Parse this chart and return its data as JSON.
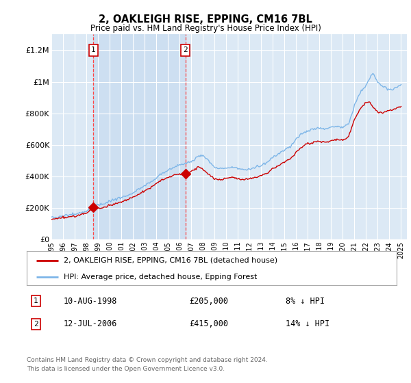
{
  "title": "2, OAKLEIGH RISE, EPPING, CM16 7BL",
  "subtitle": "Price paid vs. HM Land Registry's House Price Index (HPI)",
  "hpi_label": "HPI: Average price, detached house, Epping Forest",
  "price_label": "2, OAKLEIGH RISE, EPPING, CM16 7BL (detached house)",
  "sale1_date_x": 1998.6,
  "sale1_label": "1",
  "sale1_price": 205000,
  "sale1_date_str": "10-AUG-1998",
  "sale1_pct": "8% ↓ HPI",
  "sale2_date_x": 2006.5,
  "sale2_label": "2",
  "sale2_price": 415000,
  "sale2_date_str": "12-JUL-2006",
  "sale2_pct": "14% ↓ HPI",
  "hpi_color": "#7eb6e8",
  "price_color": "#cc0000",
  "marker_color": "#cc0000",
  "vline_color": "#ff4444",
  "background_color": "#dce9f5",
  "shade_color": "#c8dcf0",
  "grid_color": "#ffffff",
  "ylim": [
    0,
    1300000
  ],
  "xlim_left": 1995.0,
  "xlim_right": 2025.5,
  "footer": "Contains HM Land Registry data © Crown copyright and database right 2024.\nThis data is licensed under the Open Government Licence v3.0.",
  "yticks": [
    0,
    200000,
    400000,
    600000,
    800000,
    1000000,
    1200000
  ],
  "ytick_labels": [
    "£0",
    "£200K",
    "£400K",
    "£600K",
    "£800K",
    "£1M",
    "£1.2M"
  ],
  "xticks": [
    1995,
    1996,
    1997,
    1998,
    1999,
    2000,
    2001,
    2002,
    2003,
    2004,
    2005,
    2006,
    2007,
    2008,
    2009,
    2010,
    2011,
    2012,
    2013,
    2014,
    2015,
    2016,
    2017,
    2018,
    2019,
    2020,
    2021,
    2022,
    2023,
    2024,
    2025
  ]
}
